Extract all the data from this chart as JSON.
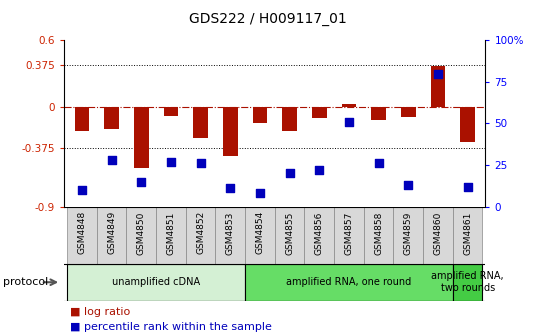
{
  "title": "GDS222 / H009117_01",
  "samples": [
    "GSM4848",
    "GSM4849",
    "GSM4850",
    "GSM4851",
    "GSM4852",
    "GSM4853",
    "GSM4854",
    "GSM4855",
    "GSM4856",
    "GSM4857",
    "GSM4858",
    "GSM4859",
    "GSM4860",
    "GSM4861"
  ],
  "log_ratio": [
    -0.22,
    -0.2,
    -0.55,
    -0.08,
    -0.28,
    -0.44,
    -0.15,
    -0.22,
    -0.1,
    0.03,
    -0.12,
    -0.09,
    0.37,
    -0.32
  ],
  "percentile": [
    10,
    28,
    15,
    27,
    26,
    11,
    8,
    20,
    22,
    51,
    26,
    13,
    80,
    12
  ],
  "protocols": [
    {
      "label": "unamplified cDNA",
      "start": 0,
      "end": 5,
      "color": "#d4f0d4"
    },
    {
      "label": "amplified RNA, one round",
      "start": 6,
      "end": 12,
      "color": "#66dd66"
    },
    {
      "label": "amplified RNA,\ntwo rounds",
      "start": 13,
      "end": 13,
      "color": "#44cc44"
    }
  ],
  "ylim_left": [
    -0.9,
    0.6
  ],
  "ylim_right": [
    0,
    100
  ],
  "yticks_left": [
    -0.9,
    -0.375,
    0.0,
    0.375,
    0.6
  ],
  "ytick_labels_left": [
    "-0.9",
    "-0.375",
    "0",
    "0.375",
    "0.6"
  ],
  "yticks_right": [
    0,
    25,
    50,
    75,
    100
  ],
  "ytick_labels_right": [
    "0",
    "25",
    "50",
    "75",
    "100%"
  ],
  "bar_color": "#aa1100",
  "dot_color": "#0000bb",
  "bar_width": 0.5,
  "dot_size": 40,
  "legend_log": "log ratio",
  "legend_pct": "percentile rank within the sample",
  "protocol_label": "protocol",
  "sample_bg": "#d8d8d8",
  "sample_border": "#888888"
}
